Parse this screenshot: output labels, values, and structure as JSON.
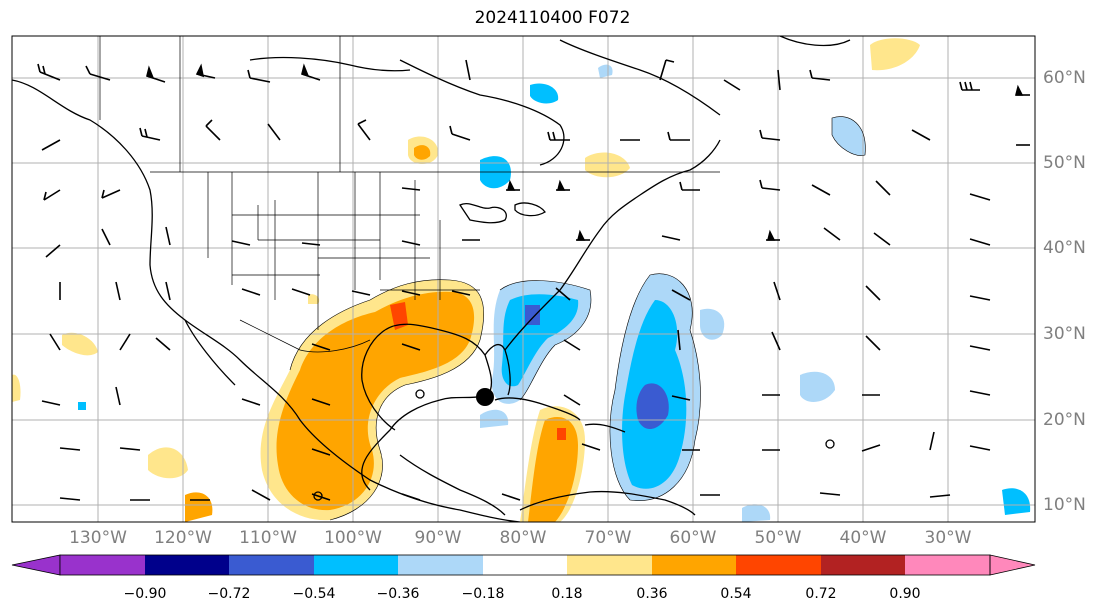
{
  "title": "2024110400 F072",
  "lon_labels": [
    "130°W",
    "120°W",
    "110°W",
    "100°W",
    "90°W",
    "80°W",
    "70°W",
    "60°W",
    "50°W",
    "40°W",
    "30°W"
  ],
  "lat_labels": [
    "60°N",
    "50°N",
    "40°N",
    "30°N",
    "20°N",
    "10°N"
  ],
  "colorbar": {
    "ticks": [
      "−0.90",
      "−0.72",
      "−0.54",
      "−0.36",
      "−0.18",
      "0.18",
      "0.36",
      "0.54",
      "0.72",
      "0.90"
    ],
    "colors": [
      "#9932cc",
      "#00008b",
      "#3a5bd1",
      "#00bfff",
      "#add8f8",
      "#ffffff",
      "#ffe68c",
      "#ffa500",
      "#ff4500",
      "#b22222",
      "#ff88bb"
    ]
  },
  "colors": {
    "land_outline": "#000000",
    "grid": "#b0b0b0",
    "label": "#7f7f7f"
  },
  "markers": [
    {
      "name": "storm-center",
      "desc": "black dot"
    }
  ]
}
